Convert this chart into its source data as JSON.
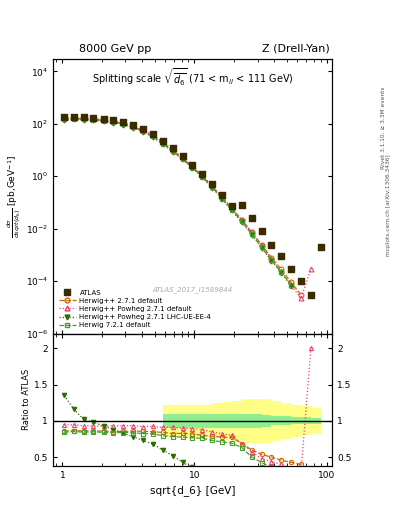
{
  "title_left": "8000 GeV pp",
  "title_right": "Z (Drell-Yan)",
  "plot_title": "Splitting scale $\\sqrt{\\overline{d_6}}$ (71 < m$_{ll}$ < 111 GeV)",
  "ylabel_main": "$\\frac{d\\sigma}{dsqrt[d_6]}$ [pb,GeV$^{-1}$]",
  "ylabel_ratio": "Ratio to ATLAS",
  "xlabel": "sqrt{d_6} [GeV]",
  "watermark": "ATLAS_2017_I1589844",
  "right_label_top": "Rivet 3.1.10, ≥ 3.3M events",
  "right_label_bot": "mcplots.cern.ch [arXiv:1306.3436]",
  "atlas_x": [
    1.03,
    1.22,
    1.45,
    1.72,
    2.05,
    2.43,
    2.89,
    3.43,
    4.08,
    4.84,
    5.75,
    6.83,
    8.12,
    9.64,
    11.45,
    13.6,
    16.15,
    19.18,
    22.78,
    27.07,
    32.15,
    38.19,
    45.36,
    53.88,
    64.0,
    76.02,
    90.3
  ],
  "atlas_y": [
    180,
    185,
    180,
    172,
    158,
    143,
    118,
    92,
    63,
    40,
    22,
    11.5,
    5.8,
    2.8,
    1.25,
    0.52,
    0.2,
    0.075,
    0.08,
    0.025,
    0.008,
    0.0025,
    0.0009,
    0.0003,
    0.0001,
    3e-05,
    0.002
  ],
  "hw271_x": [
    1.03,
    1.22,
    1.45,
    1.72,
    2.05,
    2.43,
    2.89,
    3.43,
    4.08,
    4.84,
    5.75,
    6.83,
    8.12,
    9.64,
    11.45,
    13.6,
    16.15,
    19.18,
    22.78,
    27.07,
    32.15,
    38.19,
    45.36,
    53.88,
    64.0
  ],
  "hw271_y": [
    155,
    160,
    155,
    148,
    136,
    122,
    101,
    79,
    54,
    34,
    18.5,
    9.5,
    4.8,
    2.3,
    1.0,
    0.41,
    0.155,
    0.058,
    0.022,
    0.0075,
    0.0025,
    0.0008,
    0.00028,
    9e-05,
    3e-05
  ],
  "hw271pow_x": [
    1.03,
    1.22,
    1.45,
    1.72,
    2.05,
    2.43,
    2.89,
    3.43,
    4.08,
    4.84,
    5.75,
    6.83,
    8.12,
    9.64,
    11.45,
    13.6,
    16.15,
    19.18,
    22.78,
    27.07,
    32.15,
    38.19,
    45.36,
    53.88,
    64.0,
    76.02
  ],
  "hw271pow_y": [
    170,
    175,
    168,
    160,
    147,
    133,
    110,
    86,
    58,
    37,
    20,
    10.5,
    5.2,
    2.5,
    1.1,
    0.44,
    0.165,
    0.06,
    0.022,
    0.0072,
    0.0023,
    0.0007,
    0.00024,
    7e-05,
    2.2e-05,
    0.0003
  ],
  "hw271lhc_x": [
    1.03,
    1.22,
    1.45,
    1.72,
    2.05,
    2.43,
    2.89,
    3.43,
    4.08,
    4.84,
    5.75,
    6.83,
    8.12,
    9.64,
    11.45,
    13.6,
    16.15,
    19.18,
    22.78,
    27.07,
    32.15,
    38.19,
    45.36,
    53.88
  ],
  "hw271lhc_y": [
    140,
    148,
    143,
    135,
    124,
    112,
    92,
    72,
    49,
    31,
    17,
    8.8,
    4.4,
    2.1,
    0.92,
    0.37,
    0.138,
    0.05,
    0.018,
    0.006,
    0.0019,
    0.0006,
    0.00021,
    6.5e-05
  ],
  "hw721_x": [
    1.03,
    1.22,
    1.45,
    1.72,
    2.05,
    2.43,
    2.89,
    3.43,
    4.08,
    4.84,
    5.75,
    6.83,
    8.12,
    9.64,
    11.45,
    13.6,
    16.15,
    19.18,
    22.78,
    27.07,
    32.15,
    38.19,
    45.36,
    53.88
  ],
  "hw721_y": [
    152,
    158,
    152,
    146,
    133,
    120,
    99,
    77,
    52,
    33,
    17.5,
    9.0,
    4.5,
    2.15,
    0.95,
    0.38,
    0.142,
    0.052,
    0.019,
    0.0063,
    0.002,
    0.00063,
    0.00022,
    7e-05
  ],
  "ratio_hw271_x": [
    1.03,
    1.22,
    1.45,
    1.72,
    2.05,
    2.43,
    2.89,
    3.43,
    4.08,
    4.84,
    5.75,
    6.83,
    8.12,
    9.64,
    11.45,
    13.6,
    16.15,
    19.18,
    22.78,
    27.07,
    32.15,
    38.19,
    45.36,
    53.88,
    64.0
  ],
  "ratio_hw271_y": [
    0.86,
    0.865,
    0.86,
    0.86,
    0.86,
    0.853,
    0.856,
    0.858,
    0.857,
    0.85,
    0.841,
    0.826,
    0.828,
    0.821,
    0.8,
    0.788,
    0.775,
    0.773,
    0.688,
    0.6,
    0.54,
    0.5,
    0.46,
    0.43,
    0.4
  ],
  "ratio_hw271pow_x": [
    1.03,
    1.22,
    1.45,
    1.72,
    2.05,
    2.43,
    2.89,
    3.43,
    4.08,
    4.84,
    5.75,
    6.83,
    8.12,
    9.64,
    11.45,
    13.6,
    16.15,
    19.18,
    22.78,
    27.07,
    32.15,
    38.19,
    45.36,
    53.88,
    64.0,
    76.02
  ],
  "ratio_hw271pow_y": [
    0.944,
    0.946,
    0.933,
    0.93,
    0.93,
    0.93,
    0.932,
    0.935,
    0.921,
    0.925,
    0.909,
    0.913,
    0.897,
    0.893,
    0.88,
    0.846,
    0.825,
    0.8,
    0.688,
    0.576,
    0.479,
    0.44,
    0.4,
    0.35,
    0.3,
    2.0
  ],
  "ratio_hw271lhc_x": [
    1.03,
    1.22,
    1.45,
    1.72,
    2.05,
    2.43,
    2.89,
    3.43,
    4.08,
    4.84,
    5.75,
    6.83,
    8.12,
    9.64,
    11.45,
    13.6,
    16.15,
    19.18,
    22.78,
    27.07
  ],
  "ratio_hw271lhc_y": [
    1.35,
    1.16,
    1.02,
    0.98,
    0.93,
    0.88,
    0.83,
    0.78,
    0.73,
    0.68,
    0.6,
    0.52,
    0.43,
    0.36,
    0.28,
    0.22,
    0.17,
    0.13,
    0.1,
    0.08
  ],
  "ratio_hw721_x": [
    1.03,
    1.22,
    1.45,
    1.72,
    2.05,
    2.43,
    2.89,
    3.43,
    4.08,
    4.84,
    5.75,
    6.83,
    8.12,
    9.64,
    11.45,
    13.6,
    16.15,
    19.18,
    22.78,
    27.07,
    32.15,
    38.19,
    45.36,
    53.88
  ],
  "ratio_hw721_y": [
    0.844,
    0.854,
    0.844,
    0.849,
    0.842,
    0.839,
    0.839,
    0.837,
    0.825,
    0.825,
    0.795,
    0.783,
    0.776,
    0.768,
    0.76,
    0.731,
    0.71,
    0.693,
    0.633,
    0.504,
    0.427,
    0.36,
    0.32,
    0.28
  ],
  "band_x_edges": [
    5.75,
    6.83,
    8.12,
    9.64,
    11.45,
    13.6,
    16.15,
    19.18,
    22.78,
    27.07,
    32.15,
    38.19,
    45.36,
    53.88,
    64.0,
    76.02,
    90.3
  ],
  "band_green_lo": [
    0.9,
    0.9,
    0.9,
    0.9,
    0.9,
    0.9,
    0.9,
    0.9,
    0.9,
    0.9,
    0.92,
    0.94,
    0.94,
    0.95,
    0.95,
    0.96,
    0.96
  ],
  "band_green_hi": [
    1.1,
    1.1,
    1.1,
    1.1,
    1.1,
    1.1,
    1.1,
    1.1,
    1.1,
    1.1,
    1.08,
    1.06,
    1.06,
    1.05,
    1.05,
    1.04,
    1.04
  ],
  "band_yellow_lo": [
    0.78,
    0.78,
    0.78,
    0.78,
    0.78,
    0.76,
    0.74,
    0.72,
    0.7,
    0.7,
    0.7,
    0.72,
    0.75,
    0.78,
    0.8,
    0.82,
    0.83
  ],
  "band_yellow_hi": [
    1.22,
    1.22,
    1.22,
    1.22,
    1.22,
    1.24,
    1.26,
    1.28,
    1.3,
    1.3,
    1.3,
    1.28,
    1.25,
    1.22,
    1.2,
    1.18,
    1.17
  ],
  "color_atlas": "#3d2b00",
  "color_hw271": "#cc6600",
  "color_hw271pow": "#e8436e",
  "color_hw271lhc": "#2d6e00",
  "color_hw721": "#4a9e2a",
  "color_band_green": "#90EE90",
  "color_band_yellow": "#FFFF88",
  "xlim": [
    0.85,
    110.0
  ],
  "ylim_main": [
    1e-06,
    30000.0
  ],
  "ylim_ratio": [
    0.38,
    2.2
  ],
  "ratio_yticks": [
    0.5,
    1.0,
    1.5,
    2.0
  ],
  "ratio_yticklabels": [
    "0.5",
    "1",
    "1.5",
    "2"
  ]
}
